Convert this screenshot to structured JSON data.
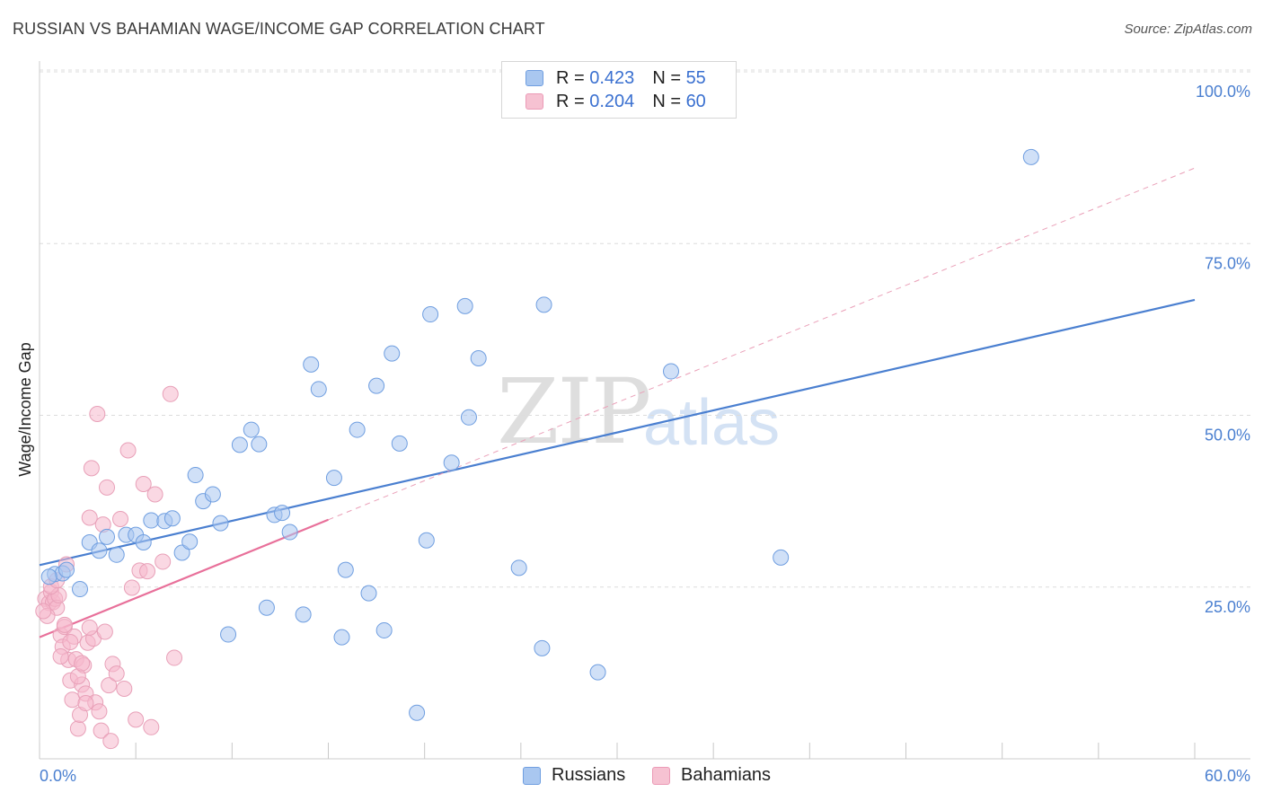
{
  "title": "RUSSIAN VS BAHAMIAN WAGE/INCOME GAP CORRELATION CHART",
  "source": "Source: ZipAtlas.com",
  "watermark": {
    "zip": "ZIP",
    "atlas": "atlas"
  },
  "legend": {
    "rows": [
      {
        "r_label": "R =",
        "r_value": "0.423",
        "n_label": "N =",
        "n_value": "55",
        "color": "#a9c7f0"
      },
      {
        "r_label": "R =",
        "r_value": "0.204",
        "n_label": "N =",
        "n_value": "60",
        "color": "#f6b8cc"
      }
    ]
  },
  "bottom_legend": {
    "series1": "Russians",
    "series2": "Bahamians"
  },
  "chart_data": {
    "type": "scatter",
    "ylabel": "Wage/Income Gap",
    "xlim": [
      0,
      60
    ],
    "ylim": [
      0,
      100
    ],
    "x_tick_labels": [
      "0.0%",
      "60.0%"
    ],
    "y_ticks": [
      25,
      50,
      75,
      100
    ],
    "y_tick_labels": [
      "25.0%",
      "50.0%",
      "75.0%",
      "100.0%"
    ],
    "series": [
      {
        "name": "Russians",
        "color": "#4a7fd0",
        "fill": "#a9c7f0",
        "trend": {
          "x0": 0,
          "y0": 28.2,
          "x1": 60,
          "y1": 66.8
        },
        "points": [
          [
            0.8,
            26.9
          ],
          [
            1.2,
            27.0
          ],
          [
            2.1,
            24.7
          ],
          [
            2.6,
            31.5
          ],
          [
            3.1,
            30.3
          ],
          [
            3.5,
            32.3
          ],
          [
            4.0,
            29.7
          ],
          [
            4.5,
            32.6
          ],
          [
            5.0,
            32.6
          ],
          [
            5.4,
            31.5
          ],
          [
            5.8,
            34.7
          ],
          [
            6.5,
            34.6
          ],
          [
            6.9,
            35.0
          ],
          [
            7.4,
            30.0
          ],
          [
            7.8,
            31.6
          ],
          [
            8.1,
            41.3
          ],
          [
            8.5,
            37.5
          ],
          [
            9.0,
            38.5
          ],
          [
            9.4,
            34.3
          ],
          [
            9.8,
            18.1
          ],
          [
            10.4,
            45.7
          ],
          [
            11.0,
            47.9
          ],
          [
            11.4,
            45.8
          ],
          [
            11.8,
            22.0
          ],
          [
            12.2,
            35.5
          ],
          [
            12.6,
            35.8
          ],
          [
            13.0,
            33.0
          ],
          [
            13.7,
            21.0
          ],
          [
            14.1,
            57.4
          ],
          [
            14.5,
            53.8
          ],
          [
            15.3,
            40.9
          ],
          [
            15.7,
            17.7
          ],
          [
            15.9,
            27.5
          ],
          [
            16.5,
            47.9
          ],
          [
            17.1,
            24.1
          ],
          [
            17.5,
            54.3
          ],
          [
            17.9,
            18.7
          ],
          [
            18.3,
            59.0
          ],
          [
            18.7,
            45.9
          ],
          [
            19.6,
            6.7
          ],
          [
            20.1,
            31.8
          ],
          [
            20.3,
            64.7
          ],
          [
            21.4,
            43.1
          ],
          [
            22.1,
            65.9
          ],
          [
            22.3,
            49.7
          ],
          [
            22.8,
            58.3
          ],
          [
            24.9,
            27.8
          ],
          [
            26.1,
            16.1
          ],
          [
            26.2,
            66.1
          ],
          [
            29.0,
            12.6
          ],
          [
            32.8,
            56.4
          ],
          [
            38.5,
            29.3
          ],
          [
            51.5,
            87.6
          ],
          [
            0.5,
            26.5
          ],
          [
            1.4,
            27.5
          ]
        ]
      },
      {
        "name": "Bahamians",
        "color": "#e8709a",
        "fill": "#f6b8cc",
        "trend": {
          "x0": 0,
          "y0": 17.7,
          "x1": 15,
          "y1": 34.8
        },
        "trend_dashed": {
          "x0": 15,
          "y0": 34.8,
          "x1": 60,
          "y1": 86.0
        },
        "points": [
          [
            0.3,
            23.3
          ],
          [
            0.5,
            22.7
          ],
          [
            0.6,
            24.3
          ],
          [
            0.7,
            22.8
          ],
          [
            0.8,
            23.3
          ],
          [
            0.9,
            22.0
          ],
          [
            1.0,
            23.8
          ],
          [
            1.1,
            18.0
          ],
          [
            1.2,
            16.3
          ],
          [
            1.3,
            19.2
          ],
          [
            1.4,
            28.3
          ],
          [
            1.5,
            14.4
          ],
          [
            1.6,
            11.4
          ],
          [
            1.7,
            8.6
          ],
          [
            1.8,
            17.8
          ],
          [
            1.9,
            14.5
          ],
          [
            2.0,
            4.4
          ],
          [
            2.1,
            6.4
          ],
          [
            2.2,
            10.8
          ],
          [
            2.3,
            13.6
          ],
          [
            2.4,
            9.5
          ],
          [
            2.5,
            16.9
          ],
          [
            2.6,
            35.1
          ],
          [
            2.7,
            42.3
          ],
          [
            2.8,
            17.5
          ],
          [
            2.9,
            8.2
          ],
          [
            3.0,
            50.2
          ],
          [
            3.1,
            6.9
          ],
          [
            3.2,
            4.1
          ],
          [
            3.3,
            34.1
          ],
          [
            3.4,
            18.5
          ],
          [
            3.5,
            39.5
          ],
          [
            3.6,
            10.7
          ],
          [
            3.7,
            2.6
          ],
          [
            3.8,
            13.8
          ],
          [
            4.0,
            12.4
          ],
          [
            4.2,
            34.9
          ],
          [
            4.4,
            10.2
          ],
          [
            4.6,
            44.9
          ],
          [
            4.8,
            24.9
          ],
          [
            5.0,
            5.7
          ],
          [
            5.2,
            27.4
          ],
          [
            5.4,
            40.0
          ],
          [
            5.6,
            27.3
          ],
          [
            5.8,
            4.6
          ],
          [
            6.0,
            38.5
          ],
          [
            6.4,
            28.7
          ],
          [
            6.8,
            53.1
          ],
          [
            7.0,
            14.7
          ],
          [
            0.4,
            20.8
          ],
          [
            0.6,
            25.1
          ],
          [
            0.9,
            26.0
          ],
          [
            1.1,
            14.9
          ],
          [
            1.3,
            19.5
          ],
          [
            1.6,
            17.0
          ],
          [
            2.0,
            12.0
          ],
          [
            2.2,
            13.9
          ],
          [
            2.4,
            8.1
          ],
          [
            2.6,
            19.1
          ],
          [
            0.2,
            21.5
          ]
        ]
      }
    ]
  }
}
